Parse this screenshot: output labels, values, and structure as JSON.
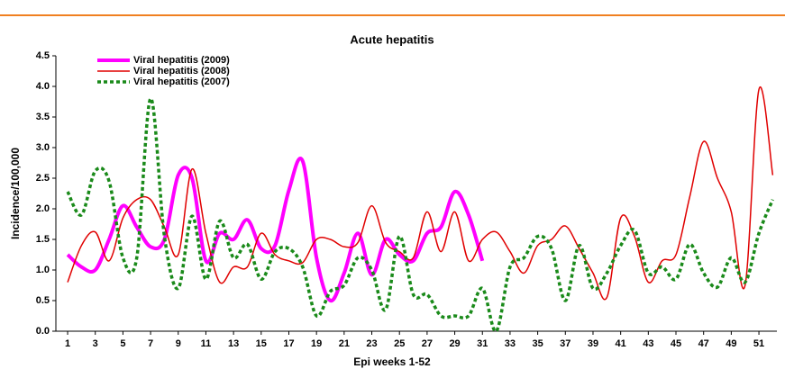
{
  "chart_data": {
    "type": "line",
    "title": "Acute hepatitis",
    "xlabel": "Epi weeks 1-52",
    "ylabel": "Incidence/100,000",
    "x": [
      1,
      2,
      3,
      4,
      5,
      6,
      7,
      8,
      9,
      10,
      11,
      12,
      13,
      14,
      15,
      16,
      17,
      18,
      19,
      20,
      21,
      22,
      23,
      24,
      25,
      26,
      27,
      28,
      29,
      30,
      31,
      32,
      33,
      34,
      35,
      36,
      37,
      38,
      39,
      40,
      41,
      42,
      43,
      44,
      45,
      46,
      47,
      48,
      49,
      50,
      51,
      52
    ],
    "series": [
      {
        "name": "Viral hepatitis (2009)",
        "color": "#ff00ff",
        "style": "solid",
        "width": 4,
        "values": [
          1.25,
          1.05,
          1.0,
          1.5,
          2.05,
          1.7,
          1.38,
          1.5,
          2.55,
          2.5,
          1.15,
          1.6,
          1.5,
          1.82,
          1.35,
          1.4,
          2.3,
          2.78,
          1.2,
          0.5,
          0.95,
          1.6,
          0.92,
          1.5,
          1.25,
          1.15,
          1.6,
          1.7,
          2.28,
          1.9,
          1.15,
          null,
          null,
          null,
          null,
          null,
          null,
          null,
          null,
          null,
          null,
          null,
          null,
          null,
          null,
          null,
          null,
          null,
          null,
          null,
          null,
          null
        ]
      },
      {
        "name": "Viral hepatitis (2008)",
        "color": "#e00000",
        "style": "solid",
        "width": 1.5,
        "values": [
          0.8,
          1.4,
          1.62,
          1.15,
          1.85,
          2.15,
          2.15,
          1.7,
          1.25,
          2.65,
          1.6,
          0.8,
          1.05,
          1.05,
          1.6,
          1.25,
          1.15,
          1.12,
          1.5,
          1.5,
          1.38,
          1.45,
          2.05,
          1.45,
          1.3,
          1.2,
          1.95,
          1.3,
          1.95,
          1.15,
          1.5,
          1.62,
          1.3,
          0.95,
          1.4,
          1.5,
          1.72,
          1.35,
          0.95,
          0.55,
          1.85,
          1.55,
          0.8,
          1.15,
          1.25,
          2.2,
          3.1,
          2.5,
          1.95,
          0.75,
          3.95,
          2.55
        ]
      },
      {
        "name": "Viral hepatitis (2007)",
        "color": "#1a8a1a",
        "style": "dotted",
        "width": 3.5,
        "values": [
          2.28,
          1.9,
          2.62,
          2.45,
          1.2,
          1.2,
          3.8,
          1.55,
          0.7,
          1.88,
          0.85,
          1.8,
          1.2,
          1.42,
          0.85,
          1.3,
          1.35,
          1.05,
          0.25,
          0.65,
          0.75,
          1.2,
          1.0,
          0.35,
          1.55,
          0.6,
          0.6,
          0.25,
          0.25,
          0.25,
          0.7,
          0.0,
          1.05,
          1.2,
          1.55,
          1.35,
          0.5,
          1.4,
          0.7,
          0.95,
          1.4,
          1.65,
          0.95,
          1.05,
          0.85,
          1.42,
          0.95,
          0.72,
          1.2,
          0.8,
          1.6,
          2.15
        ]
      }
    ],
    "xlim": [
      0.15,
      52.3
    ],
    "xticks": [
      1,
      3,
      5,
      7,
      9,
      11,
      13,
      15,
      17,
      19,
      21,
      23,
      25,
      27,
      29,
      31,
      33,
      35,
      37,
      39,
      41,
      43,
      45,
      47,
      49,
      51
    ],
    "ylim": [
      0,
      4.5
    ],
    "yticks": [
      {
        "value": 0,
        "label": "0.0"
      },
      {
        "value": 0.5,
        "label": "0.5"
      },
      {
        "value": 1,
        "label": "1.0"
      },
      {
        "value": 1.5,
        "label": "1.5"
      },
      {
        "value": 2,
        "label": "2.0"
      },
      {
        "value": 2.5,
        "label": "2.5"
      },
      {
        "value": 3,
        "label": "3.0"
      },
      {
        "value": 3.5,
        "label": "3.5"
      },
      {
        "value": 4,
        "label": "4.0"
      },
      {
        "value": 4.5,
        "label": "4.5"
      }
    ],
    "grid": false,
    "legend": "upper left",
    "smooth": true
  }
}
